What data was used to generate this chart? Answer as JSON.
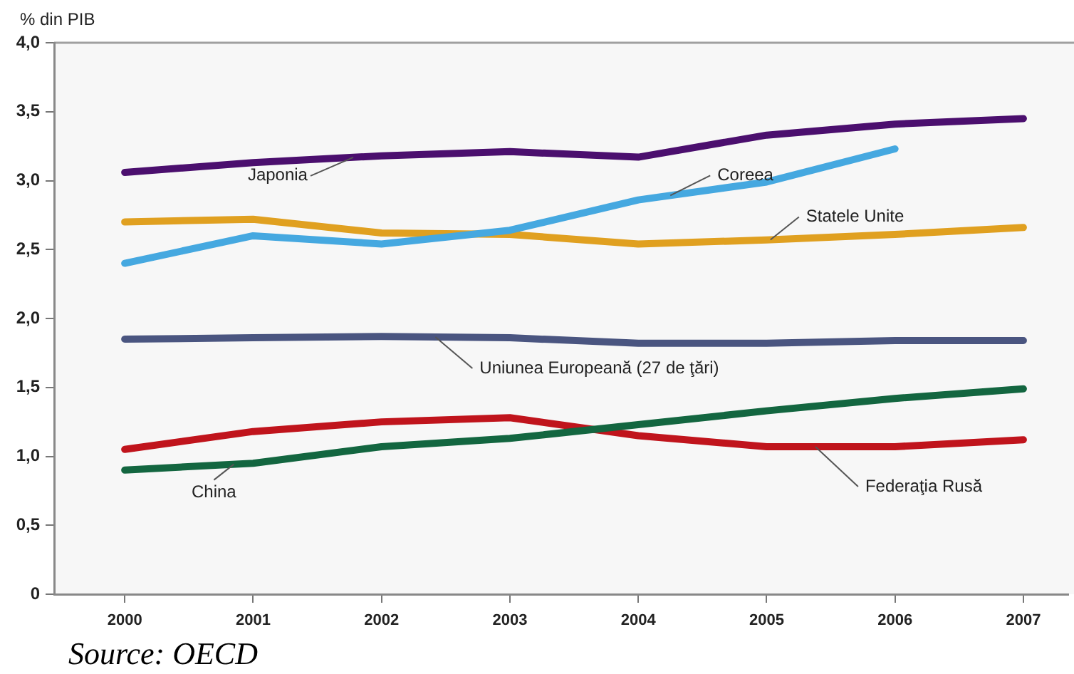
{
  "chart_data": {
    "type": "line",
    "ylabel": "% din PIB",
    "x": [
      2000,
      2001,
      2002,
      2003,
      2004,
      2005,
      2006,
      2007
    ],
    "series": [
      {
        "name": "Japonia",
        "color": "#4b0f6e",
        "values": [
          3.06,
          3.13,
          3.18,
          3.21,
          3.17,
          3.33,
          3.41,
          3.45
        ]
      },
      {
        "name": "Coreea",
        "color": "#45a8e0",
        "values": [
          2.4,
          2.6,
          2.54,
          2.64,
          2.86,
          2.99,
          3.23,
          null
        ]
      },
      {
        "name": "Statele Unite",
        "color": "#e0a020",
        "values": [
          2.7,
          2.72,
          2.62,
          2.61,
          2.54,
          2.57,
          2.61,
          2.66
        ]
      },
      {
        "name": "Uniunea Europeană (27 de ţări)",
        "color": "#4a5580",
        "values": [
          1.85,
          1.86,
          1.87,
          1.86,
          1.82,
          1.82,
          1.84,
          1.84
        ]
      },
      {
        "name": "China",
        "color": "#136640",
        "values": [
          0.9,
          0.95,
          1.07,
          1.13,
          1.23,
          1.33,
          1.42,
          1.49
        ]
      },
      {
        "name": "Federaţia Rusă",
        "color": "#c0141c",
        "values": [
          1.05,
          1.18,
          1.25,
          1.28,
          1.15,
          1.07,
          1.07,
          1.12
        ]
      }
    ],
    "xlim": [
      1999.45,
      2007.35
    ],
    "xticks": [
      2000,
      2001,
      2002,
      2003,
      2004,
      2005,
      2006,
      2007
    ],
    "ylim": [
      0,
      4
    ],
    "yticks": [
      {
        "value": 0,
        "label": "0"
      },
      {
        "value": 0.5,
        "label": "0,5"
      },
      {
        "value": 1,
        "label": "1,0"
      },
      {
        "value": 1.5,
        "label": "1,5"
      },
      {
        "value": 2,
        "label": "2,0"
      },
      {
        "value": 2.5,
        "label": "2,5"
      },
      {
        "value": 3,
        "label": "3,0"
      },
      {
        "value": 3.5,
        "label": "3,5"
      },
      {
        "value": 4,
        "label": "4,0"
      }
    ],
    "grid": false,
    "legend": false,
    "marker": "none",
    "line_style": "solid",
    "annotations": [
      "Source: OECD"
    ]
  }
}
